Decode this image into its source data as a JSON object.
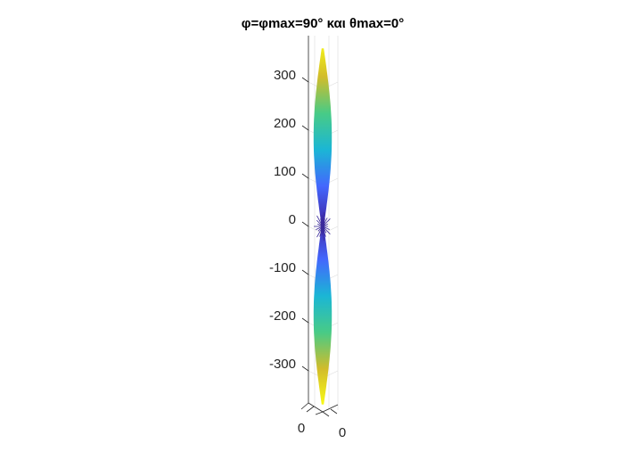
{
  "chart_data": {
    "type": "surface",
    "title": "φ=φmax=90° και θmax=0°",
    "z_ticks": [
      300,
      200,
      100,
      0,
      -100,
      -200,
      -300
    ],
    "z_tick_labels": [
      "300",
      "200",
      "100",
      "0",
      "-100",
      "-200",
      "-300"
    ],
    "z_range": [
      -380,
      380
    ],
    "x_tick_labels": [
      "0"
    ],
    "y_tick_labels": [
      "0"
    ],
    "grid": true,
    "colormap": [
      "#3e26a8",
      "#4367fd",
      "#1bb6d5",
      "#48cb86",
      "#d2bc2a",
      "#f9fb15"
    ],
    "lobe_peak": 370
  }
}
